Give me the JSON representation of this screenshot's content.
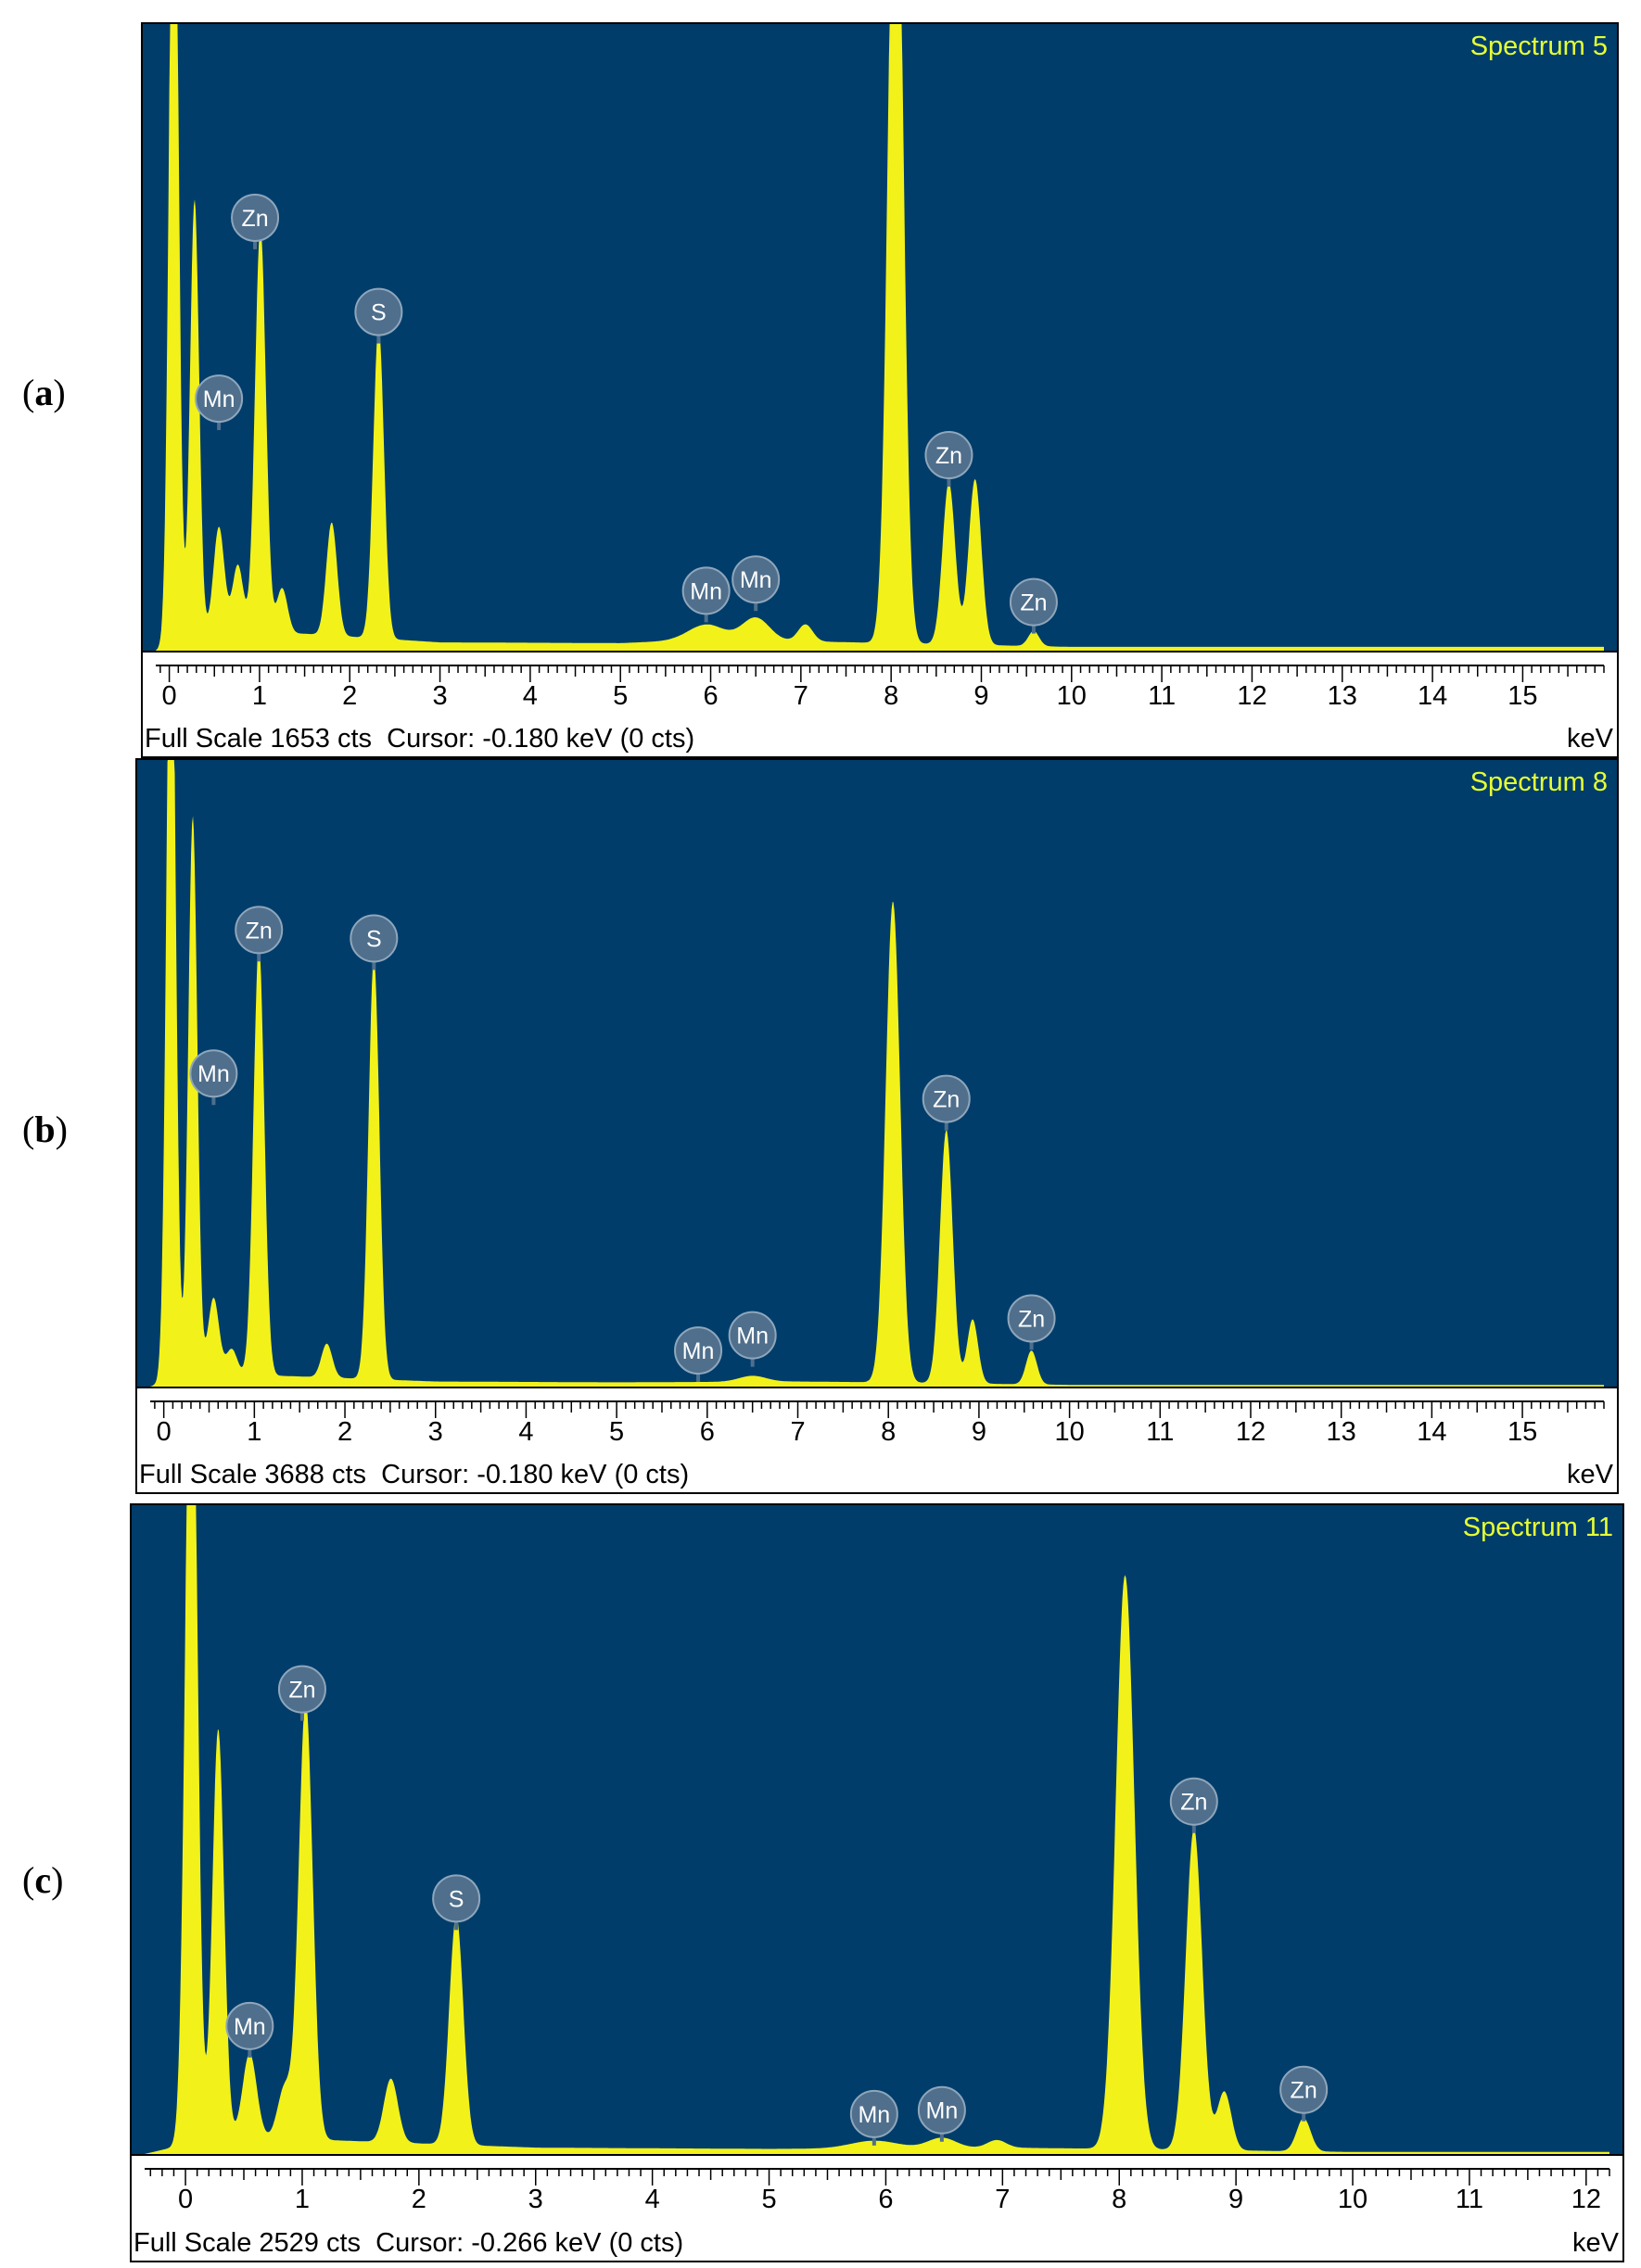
{
  "colors": {
    "plot_background": "#003d6b",
    "spectrum_fill": "#f2f21a",
    "spectrum_title": "#e6ff33",
    "marker_fill": "#4f6f8c",
    "marker_text": "#ffffff"
  },
  "chart_data": [
    {
      "type": "area",
      "panel_label": "a",
      "title": "Spectrum 5",
      "xlabel": "keV",
      "full_scale_cts": 1653,
      "footer": "Full Scale 1653 cts  Cursor: -0.180 keV (0 cts)",
      "xlim": [
        -0.15,
        15.9
      ],
      "ylim": [
        0,
        1653
      ],
      "xticks": [
        0,
        1,
        2,
        3,
        4,
        5,
        6,
        7,
        8,
        9,
        10,
        11,
        12,
        13,
        14,
        15
      ],
      "peaks": [
        {
          "x": 0.05,
          "y": 2400,
          "w": 0.05
        },
        {
          "x": 0.28,
          "y": 1150,
          "w": 0.05
        },
        {
          "x": 0.55,
          "y": 280,
          "w": 0.06
        },
        {
          "x": 0.76,
          "y": 180,
          "w": 0.06
        },
        {
          "x": 1.01,
          "y": 1080,
          "w": 0.06
        },
        {
          "x": 1.25,
          "y": 120,
          "w": 0.06
        },
        {
          "x": 1.8,
          "y": 300,
          "w": 0.06
        },
        {
          "x": 2.32,
          "y": 830,
          "w": 0.06
        },
        {
          "x": 5.95,
          "y": 40,
          "w": 0.2
        },
        {
          "x": 6.5,
          "y": 60,
          "w": 0.15
        },
        {
          "x": 7.05,
          "y": 45,
          "w": 0.08
        },
        {
          "x": 8.05,
          "y": 2400,
          "w": 0.08
        },
        {
          "x": 8.64,
          "y": 430,
          "w": 0.07
        },
        {
          "x": 8.93,
          "y": 440,
          "w": 0.07
        },
        {
          "x": 9.58,
          "y": 40,
          "w": 0.06
        }
      ],
      "baseline": [
        [
          -0.15,
          0
        ],
        [
          0.3,
          50
        ],
        [
          1.5,
          45
        ],
        [
          3,
          22
        ],
        [
          5,
          20
        ],
        [
          6,
          30
        ],
        [
          7,
          25
        ],
        [
          8,
          20
        ],
        [
          10,
          10
        ],
        [
          16,
          10
        ]
      ],
      "markers": [
        {
          "label": "Zn",
          "x": 0.95,
          "y": 1080
        },
        {
          "label": "Mn",
          "x": 0.55,
          "y": 600
        },
        {
          "label": "S",
          "x": 2.32,
          "y": 830
        },
        {
          "label": "Mn",
          "x": 5.95,
          "y": 90
        },
        {
          "label": "Mn",
          "x": 6.5,
          "y": 120
        },
        {
          "label": "Zn",
          "x": 8.64,
          "y": 450
        },
        {
          "label": "Zn",
          "x": 9.58,
          "y": 60
        }
      ]
    },
    {
      "type": "area",
      "panel_label": "b",
      "title": "Spectrum 8",
      "xlabel": "keV",
      "full_scale_cts": 3688,
      "footer": "Full Scale 3688 cts  Cursor: -0.180 keV (0 cts)",
      "xlim": [
        -0.15,
        15.9
      ],
      "ylim": [
        0,
        3688
      ],
      "xticks": [
        0,
        1,
        2,
        3,
        4,
        5,
        6,
        7,
        8,
        9,
        10,
        11,
        12,
        13,
        14,
        15
      ],
      "peaks": [
        {
          "x": 0.08,
          "y": 5000,
          "w": 0.05
        },
        {
          "x": 0.32,
          "y": 3300,
          "w": 0.05
        },
        {
          "x": 0.55,
          "y": 450,
          "w": 0.06
        },
        {
          "x": 0.75,
          "y": 150,
          "w": 0.06
        },
        {
          "x": 1.05,
          "y": 2550,
          "w": 0.06
        },
        {
          "x": 1.8,
          "y": 200,
          "w": 0.06
        },
        {
          "x": 2.32,
          "y": 2500,
          "w": 0.06
        },
        {
          "x": 6.5,
          "y": 35,
          "w": 0.15
        },
        {
          "x": 8.05,
          "y": 2850,
          "w": 0.08
        },
        {
          "x": 8.64,
          "y": 1500,
          "w": 0.07
        },
        {
          "x": 8.93,
          "y": 380,
          "w": 0.06
        },
        {
          "x": 9.58,
          "y": 200,
          "w": 0.06
        }
      ],
      "baseline": [
        [
          -0.15,
          0
        ],
        [
          0.3,
          80
        ],
        [
          1.5,
          60
        ],
        [
          3,
          30
        ],
        [
          5,
          25
        ],
        [
          7,
          30
        ],
        [
          8,
          25
        ],
        [
          10,
          10
        ],
        [
          16,
          10
        ]
      ],
      "markers": [
        {
          "label": "Zn",
          "x": 1.05,
          "y": 2550
        },
        {
          "label": "Mn",
          "x": 0.55,
          "y": 1700
        },
        {
          "label": "S",
          "x": 2.32,
          "y": 2500
        },
        {
          "label": "Mn",
          "x": 5.9,
          "y": 60
        },
        {
          "label": "Mn",
          "x": 6.5,
          "y": 150
        },
        {
          "label": "Zn",
          "x": 8.64,
          "y": 1550
        },
        {
          "label": "Zn",
          "x": 9.58,
          "y": 250
        }
      ]
    },
    {
      "type": "area",
      "panel_label": "c",
      "title": "Spectrum 11",
      "xlabel": "keV",
      "full_scale_cts": 2529,
      "footer": "Full Scale 2529 cts  Cursor: -0.266 keV (0 cts)",
      "xlim": [
        -0.35,
        12.2
      ],
      "ylim": [
        0,
        2529
      ],
      "xticks": [
        0,
        1,
        2,
        3,
        4,
        5,
        6,
        7,
        8,
        9,
        10,
        11,
        12
      ],
      "peaks": [
        {
          "x": 0.05,
          "y": 3500,
          "w": 0.05
        },
        {
          "x": 0.28,
          "y": 1600,
          "w": 0.05
        },
        {
          "x": 0.55,
          "y": 330,
          "w": 0.06
        },
        {
          "x": 0.85,
          "y": 200,
          "w": 0.06
        },
        {
          "x": 1.03,
          "y": 1720,
          "w": 0.06
        },
        {
          "x": 1.76,
          "y": 250,
          "w": 0.06
        },
        {
          "x": 2.32,
          "y": 900,
          "w": 0.06
        },
        {
          "x": 5.9,
          "y": 30,
          "w": 0.2
        },
        {
          "x": 6.48,
          "y": 40,
          "w": 0.12
        },
        {
          "x": 6.95,
          "y": 30,
          "w": 0.08
        },
        {
          "x": 8.05,
          "y": 2250,
          "w": 0.08
        },
        {
          "x": 8.64,
          "y": 1260,
          "w": 0.07
        },
        {
          "x": 8.9,
          "y": 230,
          "w": 0.06
        },
        {
          "x": 9.58,
          "y": 130,
          "w": 0.06
        }
      ],
      "baseline": [
        [
          -0.35,
          0
        ],
        [
          0.3,
          70
        ],
        [
          1.5,
          50
        ],
        [
          3,
          25
        ],
        [
          5,
          20
        ],
        [
          7,
          25
        ],
        [
          8,
          20
        ],
        [
          10,
          8
        ],
        [
          12.2,
          8
        ]
      ],
      "markers": [
        {
          "label": "Zn",
          "x": 1.0,
          "y": 1720
        },
        {
          "label": "Mn",
          "x": 0.55,
          "y": 400
        },
        {
          "label": "S",
          "x": 2.32,
          "y": 900
        },
        {
          "label": "Mn",
          "x": 5.9,
          "y": 55
        },
        {
          "label": "Mn",
          "x": 6.48,
          "y": 70
        },
        {
          "label": "Zn",
          "x": 8.64,
          "y": 1280
        },
        {
          "label": "Zn",
          "x": 9.58,
          "y": 150
        }
      ]
    }
  ]
}
